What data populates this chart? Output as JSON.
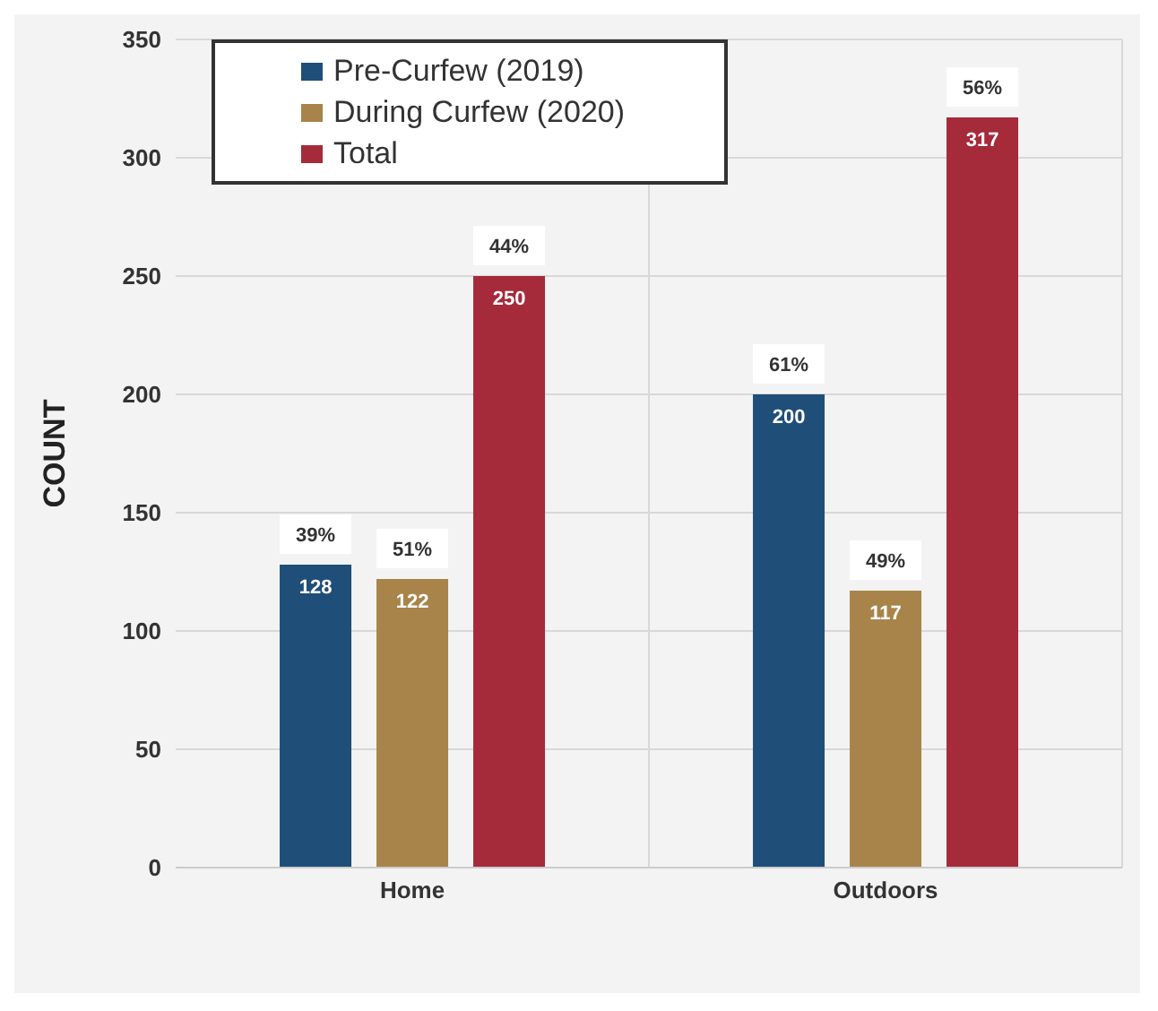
{
  "chart_data": {
    "type": "bar",
    "ylabel": "COUNT",
    "categories": [
      "Home",
      "Outdoors"
    ],
    "series": [
      {
        "name": "Pre-Curfew (2019)",
        "color": "#1f4e79",
        "values": [
          128,
          200
        ]
      },
      {
        "name": "During Curfew (2020)",
        "color": "#a8844a",
        "values": [
          122,
          117
        ]
      },
      {
        "name": "Total",
        "color": "#a52a3a",
        "values": [
          250,
          317
        ]
      }
    ],
    "ylim": [
      0,
      350
    ],
    "yticks": [
      0,
      50,
      100,
      150,
      200,
      250,
      300,
      350
    ],
    "grid": true,
    "legend": "top left",
    "data_labels": true,
    "annotations": [
      "39%",
      "51%",
      "44%",
      "61%",
      "49%",
      "56%"
    ]
  }
}
